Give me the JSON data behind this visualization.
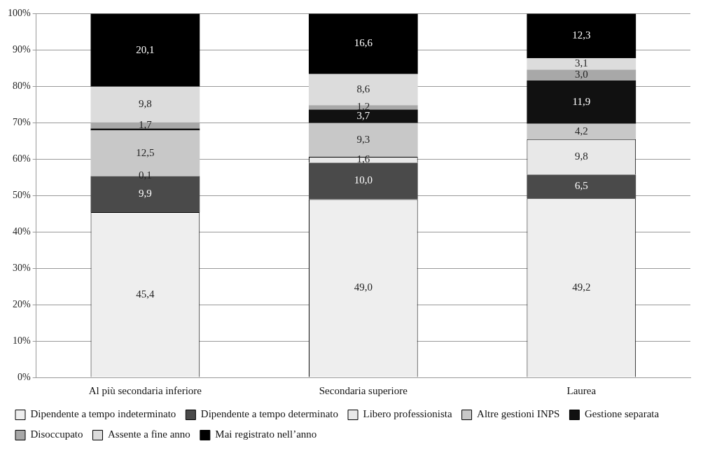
{
  "chart_data": {
    "type": "bar",
    "stacked": true,
    "categories": [
      "Al più secondaria inferiore",
      "Secondaria superiore",
      "Laurea"
    ],
    "series": [
      {
        "name": "Dipendente a tempo indeterminato",
        "color": "#eeeeee",
        "values": [
          45.4,
          49.0,
          49.2
        ],
        "value_labels": [
          "45,4",
          "49,0",
          "49,2"
        ]
      },
      {
        "name": "Dipendente a tempo determinato",
        "color": "#4a4a4a",
        "values": [
          9.9,
          10.0,
          6.5
        ],
        "value_labels": [
          "9,9",
          "10,0",
          "6,5"
        ]
      },
      {
        "name": "Libero professionista",
        "color": "#e8e8e8",
        "values": [
          0.1,
          1.6,
          9.8
        ],
        "value_labels": [
          "0,1",
          "1,6",
          "9,8"
        ]
      },
      {
        "name": "Altre gestioni INPS",
        "color": "#c8c8c8",
        "values": [
          12.5,
          9.3,
          4.2
        ],
        "value_labels": [
          "12,5",
          "9,3",
          "4,2"
        ]
      },
      {
        "name": "Gestione separata",
        "color": "#111111",
        "values": [
          0.5,
          3.7,
          11.9
        ],
        "value_labels": [
          null,
          "3,7",
          "11,9"
        ]
      },
      {
        "name": "Disoccupato",
        "color": "#a8a8a8",
        "values": [
          1.7,
          1.2,
          3.0
        ],
        "value_labels": [
          "1,7",
          "1,2",
          "3,0"
        ]
      },
      {
        "name": "Assente a fine anno",
        "color": "#dcdcdc",
        "values": [
          9.8,
          8.6,
          3.1
        ],
        "value_labels": [
          "9,8",
          "8,6",
          "3,1"
        ]
      },
      {
        "name": "Mai registrato nell’anno",
        "color": "#000000",
        "values": [
          20.1,
          16.6,
          12.3
        ],
        "value_labels": [
          "20,1",
          "16,6",
          "12,3"
        ]
      }
    ],
    "ylim": [
      0,
      100
    ],
    "yticks": [
      {
        "value": 0,
        "label": "0%"
      },
      {
        "value": 10,
        "label": "10%"
      },
      {
        "value": 20,
        "label": "20%"
      },
      {
        "value": 30,
        "label": "30%"
      },
      {
        "value": 40,
        "label": "40%"
      },
      {
        "value": 50,
        "label": "50%"
      },
      {
        "value": 60,
        "label": "60%"
      },
      {
        "value": 70,
        "label": "70%"
      },
      {
        "value": 80,
        "label": "80%"
      },
      {
        "value": 90,
        "label": "90%"
      },
      {
        "value": 100,
        "label": "100%"
      }
    ],
    "grid": "y",
    "legend": "bottom"
  }
}
